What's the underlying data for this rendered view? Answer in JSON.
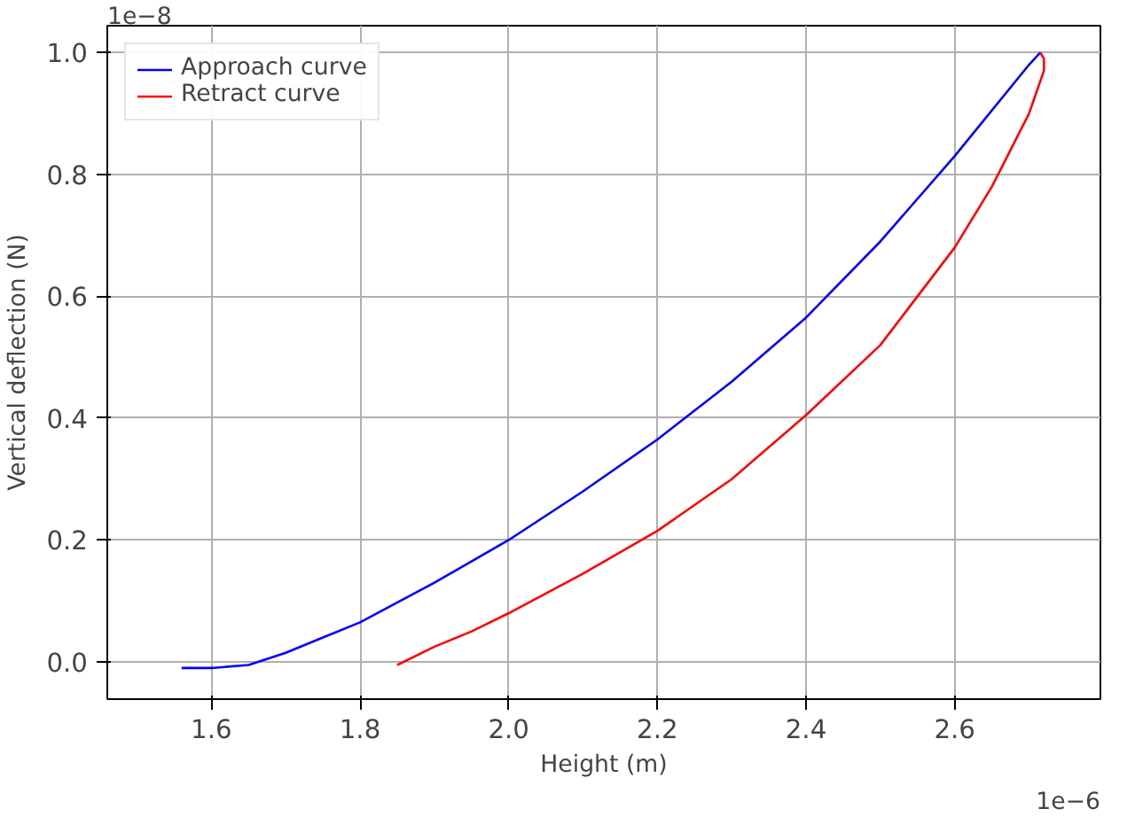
{
  "chart_data": {
    "type": "line",
    "xlabel": "Height (m)",
    "ylabel": "Vertical deflection (N)",
    "annotations": [
      "1e−6",
      "1e−8"
    ],
    "xlim": [
      1.46,
      2.796
    ],
    "ylim": [
      -0.061,
      1.044
    ],
    "xticks": [
      {
        "value": 1.6,
        "label": "1.6"
      },
      {
        "value": 1.8,
        "label": "1.8"
      },
      {
        "value": 2.0,
        "label": "2.0"
      },
      {
        "value": 2.2,
        "label": "2.2"
      },
      {
        "value": 2.4,
        "label": "2.4"
      },
      {
        "value": 2.6,
        "label": "2.6"
      }
    ],
    "yticks": [
      {
        "value": 0.0,
        "label": "0.0"
      },
      {
        "value": 0.2,
        "label": "0.2"
      },
      {
        "value": 0.4,
        "label": "0.4"
      },
      {
        "value": 0.6,
        "label": "0.6"
      },
      {
        "value": 0.8,
        "label": "0.8"
      },
      {
        "value": 1.0,
        "label": "1.0"
      }
    ],
    "grid": true,
    "legend": "top left",
    "marker": "none",
    "line_style": "solid",
    "series": [
      {
        "name": "Approach curve",
        "color": "#0000ff",
        "x": [
          1.56,
          1.6,
          1.65,
          1.7,
          1.75,
          1.8,
          1.9,
          2.0,
          2.1,
          2.2,
          2.3,
          2.4,
          2.5,
          2.6,
          2.7,
          2.715
        ],
        "values": [
          -0.01,
          -0.01,
          -0.005,
          0.015,
          0.04,
          0.065,
          0.13,
          0.2,
          0.28,
          0.365,
          0.46,
          0.565,
          0.69,
          0.83,
          0.98,
          1.0
        ]
      },
      {
        "name": "Retract curve",
        "color": "#ff0000",
        "x": [
          2.715,
          2.72,
          2.72,
          2.7,
          2.65,
          2.6,
          2.5,
          2.4,
          2.3,
          2.2,
          2.1,
          2.0,
          1.95,
          1.9,
          1.85
        ],
        "values": [
          1.0,
          0.99,
          0.97,
          0.9,
          0.78,
          0.68,
          0.52,
          0.405,
          0.3,
          0.215,
          0.145,
          0.08,
          0.05,
          0.025,
          -0.005
        ]
      }
    ]
  }
}
